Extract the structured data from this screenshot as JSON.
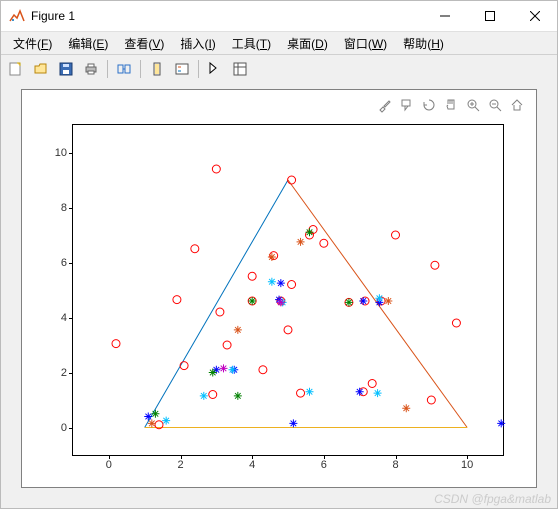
{
  "window": {
    "title": "Figure 1"
  },
  "menu": {
    "file": {
      "zh": "文件",
      "key": "F"
    },
    "edit": {
      "zh": "编辑",
      "key": "E"
    },
    "view": {
      "zh": "查看",
      "key": "V"
    },
    "insert": {
      "zh": "插入",
      "key": "I"
    },
    "tools": {
      "zh": "工具",
      "key": "T"
    },
    "desktop": {
      "zh": "桌面",
      "key": "D"
    },
    "window": {
      "zh": "窗口",
      "key": "W"
    },
    "help": {
      "zh": "帮助",
      "key": "H"
    }
  },
  "chart": {
    "type": "scatter+line",
    "background_color": "#ffffff",
    "panel_color": "#f0f0f0",
    "axis_color": "#000000",
    "tick_fontsize": 11,
    "xlim": [
      -1,
      11
    ],
    "ylim": [
      -1,
      11
    ],
    "xticks": [
      0,
      2,
      4,
      6,
      8,
      10
    ],
    "yticks": [
      0,
      2,
      4,
      6,
      8,
      10
    ],
    "lines": [
      {
        "color": "#0072bd",
        "width": 1,
        "points": [
          [
            1,
            0
          ],
          [
            5,
            9
          ]
        ]
      },
      {
        "color": "#d95319",
        "width": 1,
        "points": [
          [
            5,
            9
          ],
          [
            10,
            0
          ]
        ]
      },
      {
        "color": "#edb120",
        "width": 1,
        "points": [
          [
            1,
            0
          ],
          [
            10,
            0
          ]
        ]
      }
    ],
    "series": [
      {
        "name": "red-circles",
        "marker": "o",
        "color": "#ff0000",
        "size": 8,
        "filled": false,
        "points": [
          [
            0.2,
            3.05
          ],
          [
            1.4,
            0.1
          ],
          [
            2.1,
            2.25
          ],
          [
            1.9,
            4.65
          ],
          [
            2.4,
            6.5
          ],
          [
            3.0,
            9.4
          ],
          [
            3.1,
            4.2
          ],
          [
            3.3,
            3.0
          ],
          [
            2.9,
            1.2
          ],
          [
            4.0,
            5.5
          ],
          [
            4.0,
            4.6
          ],
          [
            4.3,
            2.1
          ],
          [
            5.1,
            9.0
          ],
          [
            4.6,
            6.25
          ],
          [
            5.1,
            5.2
          ],
          [
            4.8,
            4.6
          ],
          [
            5.0,
            3.55
          ],
          [
            5.35,
            1.25
          ],
          [
            5.7,
            7.2
          ],
          [
            5.6,
            7.0
          ],
          [
            6.0,
            6.7
          ],
          [
            6.7,
            4.55
          ],
          [
            7.15,
            4.6
          ],
          [
            7.6,
            4.6
          ],
          [
            7.1,
            1.3
          ],
          [
            7.35,
            1.6
          ],
          [
            8.0,
            7.0
          ],
          [
            9.0,
            1.0
          ],
          [
            9.7,
            3.8
          ],
          [
            9.1,
            5.9
          ]
        ]
      },
      {
        "name": "blue-stars",
        "marker": "*",
        "color": "#0000ff",
        "size": 8,
        "filled": false,
        "points": [
          [
            1.1,
            0.4
          ],
          [
            3.0,
            2.1
          ],
          [
            3.5,
            2.1
          ],
          [
            4.8,
            5.25
          ],
          [
            4.75,
            4.65
          ],
          [
            5.15,
            0.15
          ],
          [
            7.0,
            1.3
          ],
          [
            7.1,
            4.6
          ],
          [
            7.55,
            4.55
          ],
          [
            10.95,
            0.15
          ]
        ]
      },
      {
        "name": "cyan-stars",
        "marker": "*",
        "color": "#00bfff",
        "size": 8,
        "filled": false,
        "points": [
          [
            1.6,
            0.25
          ],
          [
            2.65,
            1.15
          ],
          [
            3.45,
            2.1
          ],
          [
            4.55,
            5.3
          ],
          [
            4.85,
            4.55
          ],
          [
            5.6,
            1.3
          ],
          [
            7.5,
            1.25
          ],
          [
            7.55,
            4.7
          ]
        ]
      },
      {
        "name": "green-stars",
        "marker": "*",
        "color": "#008000",
        "size": 8,
        "filled": false,
        "points": [
          [
            1.3,
            0.5
          ],
          [
            2.9,
            2.0
          ],
          [
            3.6,
            1.15
          ],
          [
            4.0,
            4.6
          ],
          [
            5.6,
            7.1
          ],
          [
            6.7,
            4.55
          ]
        ]
      },
      {
        "name": "orange-stars",
        "marker": "*",
        "color": "#d95319",
        "size": 8,
        "filled": false,
        "points": [
          [
            1.2,
            0.15
          ],
          [
            3.6,
            3.55
          ],
          [
            4.55,
            6.2
          ],
          [
            5.35,
            6.75
          ],
          [
            8.3,
            0.7
          ],
          [
            7.8,
            4.6
          ]
        ]
      },
      {
        "name": "magenta-stars",
        "marker": "*",
        "color": "#c000c0",
        "size": 8,
        "filled": false,
        "points": [
          [
            3.2,
            2.15
          ],
          [
            4.8,
            4.55
          ]
        ]
      }
    ]
  },
  "watermark": "CSDN @fpga&matlab",
  "colors": {
    "window_bg": "#f0f0f0",
    "border": "#808080",
    "axes_tool": "#808080"
  }
}
